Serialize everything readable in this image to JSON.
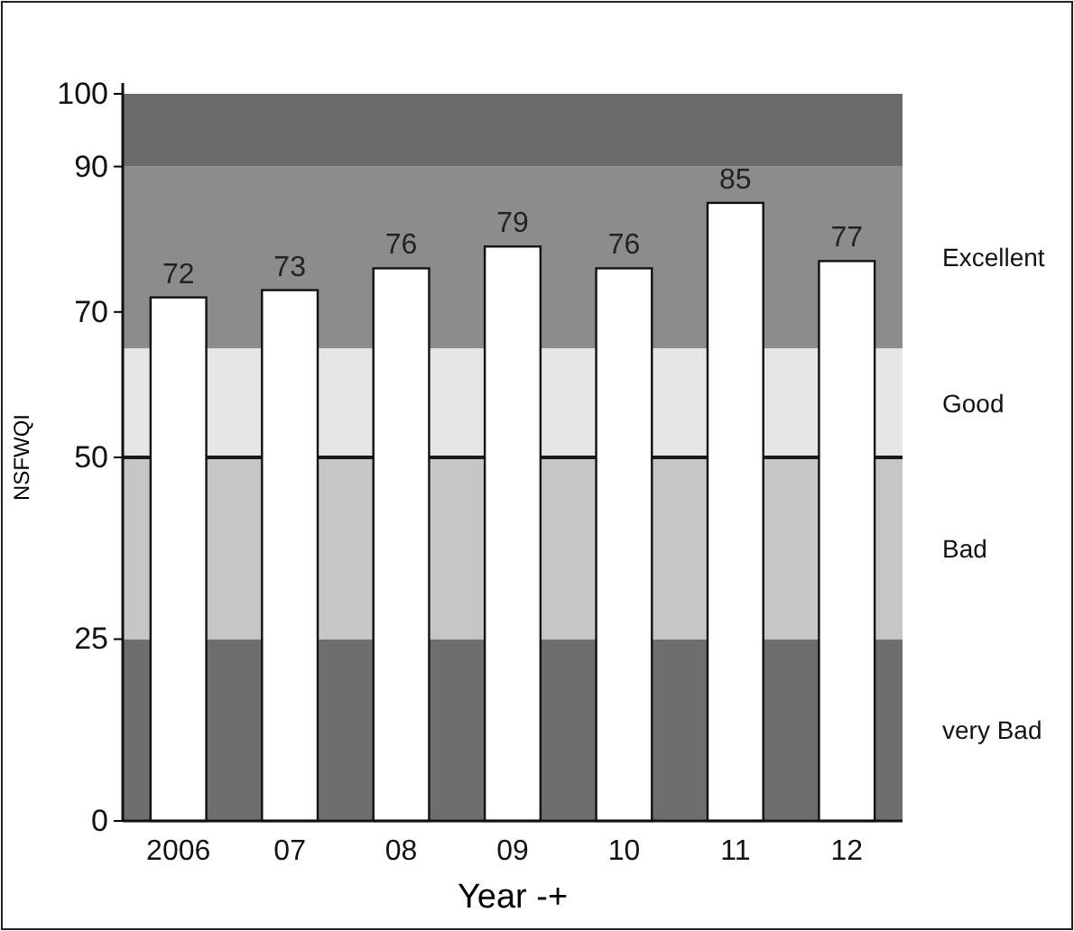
{
  "chart_data": {
    "type": "bar",
    "xlabel": "Year -+",
    "ylabel": "NSFWQI",
    "categories": [
      "2006",
      "07",
      "08",
      "09",
      "10",
      "11",
      "12"
    ],
    "values": [
      72,
      73,
      76,
      79,
      76,
      85,
      77
    ],
    "color": "#ffffff",
    "data_labels": true,
    "ylim": [
      0,
      100
    ],
    "yticks": [
      0,
      25,
      50,
      70,
      90,
      100
    ],
    "bands": [
      {
        "axis": "y",
        "from": 0,
        "to": 25,
        "label": "very Bad",
        "color": "#6e6e6e"
      },
      {
        "axis": "y",
        "from": 25,
        "to": 50,
        "label": "Bad",
        "color": "#c6c6c6"
      },
      {
        "axis": "y",
        "from": 50,
        "to": 65,
        "label": "Good",
        "color": "#e6e6e6"
      },
      {
        "axis": "y",
        "from": 65,
        "to": 90,
        "label": "Excellent",
        "color": "#8c8c8c"
      },
      {
        "axis": "y",
        "from": 90,
        "to": 100,
        "color": "#6a6a6a"
      }
    ],
    "ref_lines": [
      {
        "axis": "y",
        "value": 50,
        "color": "#1a1a1a"
      }
    ],
    "grid": false
  }
}
